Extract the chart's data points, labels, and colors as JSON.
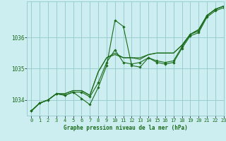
{
  "title": "Graphe pression niveau de la mer (hPa)",
  "background_color": "#cceef0",
  "grid_color": "#99cdd0",
  "line_color": "#1a6b1a",
  "marker_color": "#1a6b1a",
  "xlim": [
    -0.5,
    23
  ],
  "ylim": [
    1033.5,
    1037.15
  ],
  "yticks": [
    1034,
    1035,
    1036
  ],
  "xticks": [
    0,
    1,
    2,
    3,
    4,
    5,
    6,
    7,
    8,
    9,
    10,
    11,
    12,
    13,
    14,
    15,
    16,
    17,
    18,
    19,
    20,
    21,
    22,
    23
  ],
  "series": [
    {
      "y": [
        1033.65,
        1033.9,
        1034.0,
        1034.2,
        1034.15,
        1034.25,
        1034.05,
        1033.85,
        1034.4,
        1035.1,
        1036.55,
        1036.35,
        1035.1,
        1035.05,
        1035.35,
        1035.2,
        1035.15,
        1035.2,
        1035.65,
        1036.05,
        1036.15,
        1036.65,
        1036.85,
        1036.95
      ],
      "style": "dotted_marker"
    },
    {
      "y": [
        1033.65,
        1033.9,
        1034.0,
        1034.2,
        1034.15,
        1034.25,
        1034.25,
        1034.1,
        1034.55,
        1035.2,
        1035.6,
        1035.2,
        1035.15,
        1035.2,
        1035.35,
        1035.25,
        1035.2,
        1035.25,
        1035.7,
        1036.1,
        1036.2,
        1036.7,
        1036.9,
        1037.0
      ],
      "style": "dotted_marker"
    },
    {
      "y": [
        1033.65,
        1033.9,
        1034.0,
        1034.2,
        1034.2,
        1034.3,
        1034.3,
        1034.15,
        1034.9,
        1035.35,
        1035.45,
        1035.35,
        1035.35,
        1035.35,
        1035.45,
        1035.5,
        1035.5,
        1035.5,
        1035.75,
        1036.1,
        1036.25,
        1036.7,
        1036.9,
        1037.0
      ],
      "style": "line_only"
    },
    {
      "y": [
        1033.65,
        1033.9,
        1034.0,
        1034.2,
        1034.2,
        1034.3,
        1034.3,
        1034.15,
        1034.9,
        1035.35,
        1035.5,
        1035.35,
        1035.35,
        1035.3,
        1035.45,
        1035.5,
        1035.5,
        1035.5,
        1035.75,
        1036.1,
        1036.25,
        1036.7,
        1036.9,
        1037.0
      ],
      "style": "line_only"
    }
  ]
}
